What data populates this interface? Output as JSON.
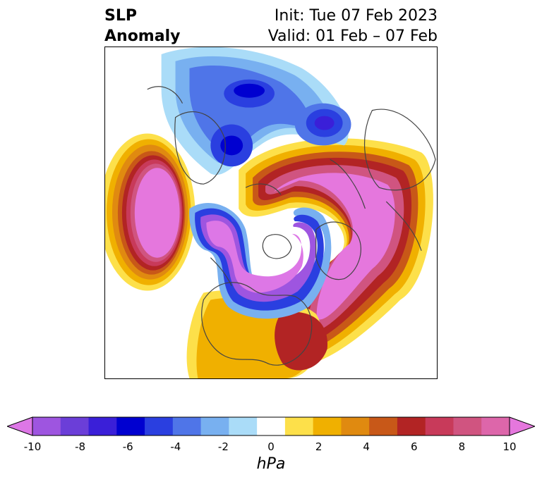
{
  "title": {
    "left_line1": "SLP",
    "left_line2": "Anomaly",
    "right_line1": "Init: Tue 07 Feb 2023",
    "right_line2": "Valid: 01 Feb – 07 Feb"
  },
  "colorbar": {
    "unit": "hPa",
    "ticks": [
      "-10",
      "-8",
      "-6",
      "-4",
      "-2",
      "0",
      "2",
      "4",
      "6",
      "8",
      "10"
    ],
    "tick_values": [
      -10,
      -8,
      -6,
      -4,
      -2,
      0,
      2,
      4,
      6,
      8,
      10
    ],
    "colors": [
      "#dd77e6",
      "#9e55e0",
      "#6b3ed8",
      "#3a1fd8",
      "#0000d0",
      "#2a3fe0",
      "#4f75e8",
      "#78b0f0",
      "#aadcf8",
      "#ffffff",
      "#fde04a",
      "#f0b000",
      "#e08a10",
      "#c85818",
      "#b22424",
      "#c83a5a",
      "#d05480",
      "#dd66aa",
      "#e577dd"
    ],
    "extend": "both"
  },
  "map": {
    "projection": "north-polar-stereographic",
    "variable": "sea-level-pressure-anomaly"
  }
}
